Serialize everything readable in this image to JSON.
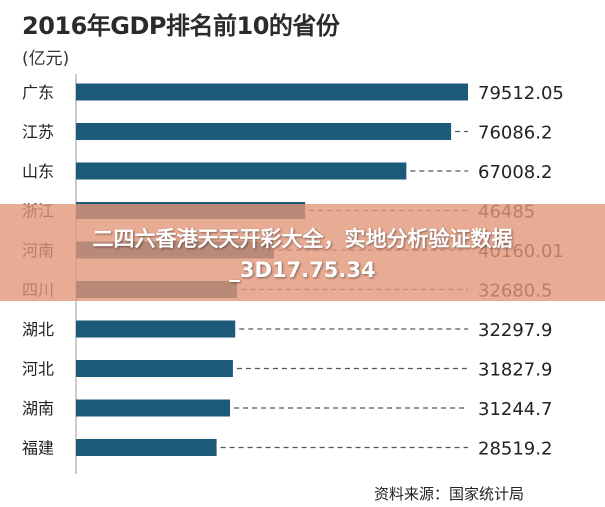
{
  "chart_data": {
    "type": "bar",
    "orientation": "horizontal",
    "title": "2016年GDP排名前10的省份",
    "unit_label": "(亿元)",
    "categories": [
      "广东",
      "江苏",
      "山东",
      "浙江",
      "河南",
      "四川",
      "湖北",
      "河北",
      "湖南",
      "福建"
    ],
    "values": [
      79512.05,
      76086.2,
      67008.2,
      46485,
      40160.01,
      32680.5,
      32297.9,
      31827.9,
      31244.7,
      28519.2
    ],
    "value_labels": [
      "79512.05",
      "76086.2",
      "67008.2",
      "46485",
      "40160.01",
      "32680.5",
      "32297.9",
      "31827.9",
      "31244.7",
      "28519.2"
    ],
    "xlim": [
      0,
      79512.05
    ],
    "bar_color": "#1c5a79",
    "grid": false,
    "source": "资料来源：国家统计局"
  },
  "overlay": {
    "line1": "二四六香港天天开彩大全，实地分析验证数据",
    "line2": "_3D17.75.34",
    "color": "#e29678"
  }
}
